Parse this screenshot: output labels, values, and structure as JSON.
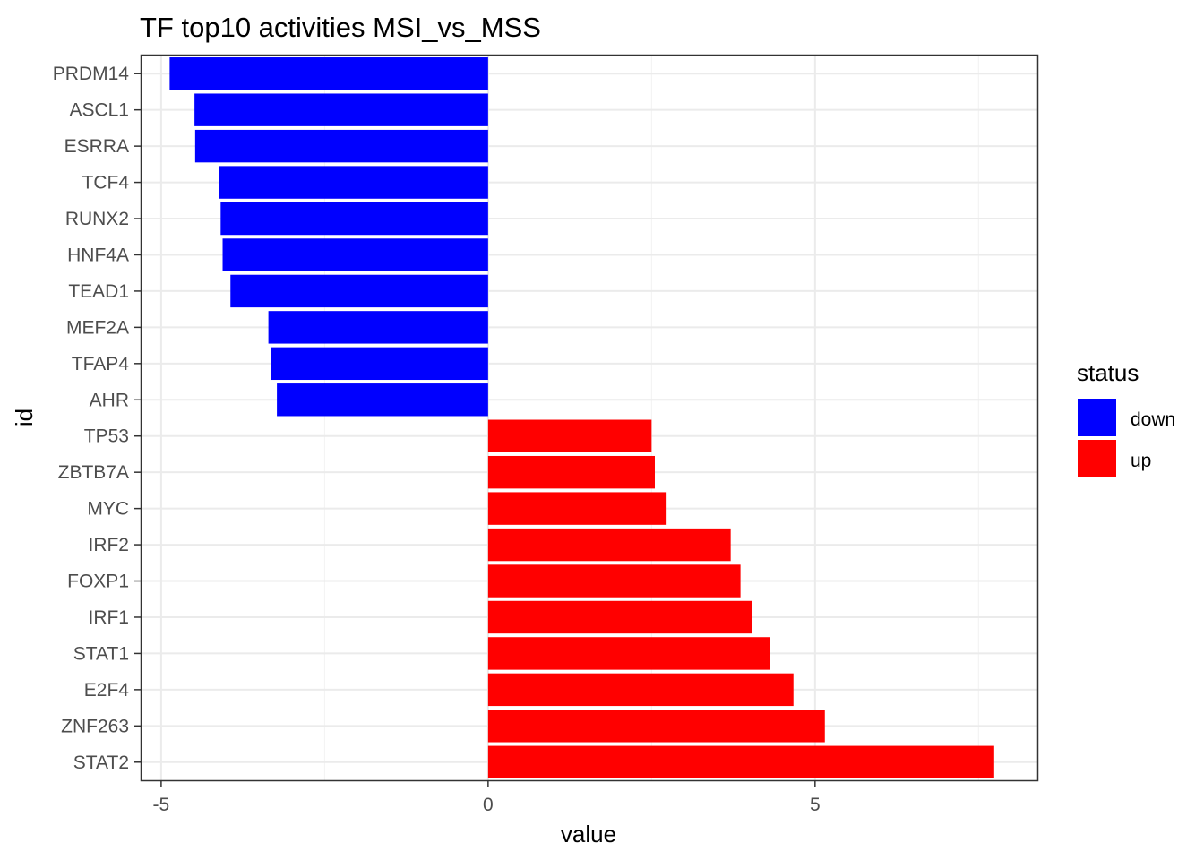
{
  "chart_data": {
    "type": "bar",
    "orientation": "horizontal",
    "title": "TF top10 activities MSI_vs_MSS",
    "xlabel": "value",
    "ylabel": "id",
    "xlim": [
      -5.3,
      8.4
    ],
    "x_ticks": [
      -5,
      0,
      5
    ],
    "x_tick_labels": [
      "-5",
      "0",
      "5"
    ],
    "grid": true,
    "categories": [
      "PRDM14",
      "ASCL1",
      "ESRRA",
      "TCF4",
      "RUNX2",
      "HNF4A",
      "TEAD1",
      "MEF2A",
      "TFAP4",
      "AHR",
      "TP53",
      "ZBTB7A",
      "MYC",
      "IRF2",
      "FOXP1",
      "IRF1",
      "STAT1",
      "E2F4",
      "ZNF263",
      "STAT2"
    ],
    "values": [
      -4.87,
      -4.49,
      -4.48,
      -4.11,
      -4.09,
      -4.06,
      -3.94,
      -3.36,
      -3.32,
      -3.23,
      2.5,
      2.55,
      2.73,
      3.71,
      3.86,
      4.03,
      4.31,
      4.67,
      5.15,
      7.74
    ],
    "status": [
      "down",
      "down",
      "down",
      "down",
      "down",
      "down",
      "down",
      "down",
      "down",
      "down",
      "up",
      "up",
      "up",
      "up",
      "up",
      "up",
      "up",
      "up",
      "up",
      "up"
    ],
    "legend": {
      "title": "status",
      "position": "right",
      "items": [
        {
          "label": "down",
          "color": "#0000FF"
        },
        {
          "label": "up",
          "color": "#FF0000"
        }
      ]
    }
  }
}
